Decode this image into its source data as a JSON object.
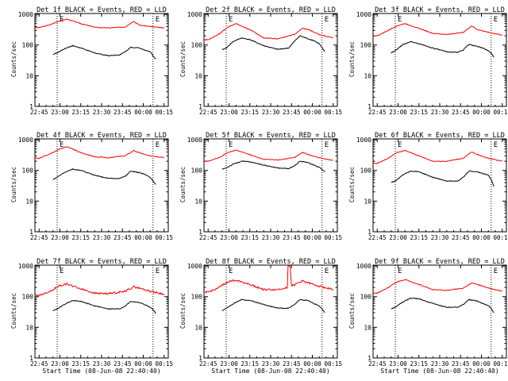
{
  "chart_data": [
    {
      "type": "line",
      "title": "Det 1f BLACK = Events, RED = LLD",
      "xlabel": "",
      "ylabel": "Counts/sec",
      "x_ticks": [
        "22:45",
        "23:00",
        "23:15",
        "23:30",
        "23:45",
        "00:00",
        "00:15"
      ],
      "y_ticks": [
        "1",
        "10",
        "100",
        "1000"
      ],
      "y_scale": "log",
      "ylim": [
        1,
        1000
      ],
      "markers": [
        "E",
        "E"
      ],
      "series": [
        {
          "name": "LLD",
          "color": "#ff0000",
          "x": [
            -3,
            0,
            8,
            14,
            20,
            30,
            40,
            50,
            62,
            68,
            72,
            80,
            90
          ],
          "values": [
            370,
            370,
            460,
            600,
            700,
            500,
            380,
            360,
            390,
            600,
            450,
            400,
            360
          ]
        },
        {
          "name": "Events",
          "color": "#000000",
          "x": [
            10,
            13,
            18,
            24,
            30,
            40,
            50,
            58,
            62,
            66,
            72,
            76,
            80,
            82,
            84
          ],
          "values": [
            50,
            55,
            75,
            95,
            80,
            55,
            45,
            48,
            60,
            85,
            80,
            70,
            60,
            45,
            35
          ]
        }
      ]
    },
    {
      "type": "line",
      "title": "Det 2f BLACK = Events, RED = LLD",
      "xlabel": "",
      "ylabel": "Counts/sec",
      "x_ticks": [
        "22:45",
        "23:00",
        "23:15",
        "23:30",
        "23:45",
        "00:00",
        "00:15"
      ],
      "y_ticks": [
        "1",
        "10",
        "100",
        "1000"
      ],
      "y_scale": "log",
      "ylim": [
        1,
        1000
      ],
      "markers": [
        "E",
        "E"
      ],
      "series": [
        {
          "name": "LLD",
          "color": "#ff0000",
          "x": [
            -3,
            0,
            8,
            14,
            20,
            30,
            40,
            50,
            62,
            68,
            72,
            80,
            90
          ],
          "values": [
            150,
            150,
            230,
            380,
            500,
            320,
            170,
            160,
            220,
            350,
            320,
            220,
            170
          ]
        },
        {
          "name": "Events",
          "color": "#000000",
          "x": [
            10,
            13,
            18,
            24,
            30,
            40,
            50,
            58,
            62,
            66,
            72,
            76,
            80,
            82,
            84
          ],
          "values": [
            70,
            80,
            130,
            170,
            150,
            95,
            72,
            80,
            130,
            200,
            160,
            140,
            110,
            80,
            60
          ]
        }
      ]
    },
    {
      "type": "line",
      "title": "Det 3f BLACK = Events, RED = LLD",
      "xlabel": "",
      "ylabel": "Counts/sec",
      "x_ticks": [
        "22:45",
        "23:00",
        "23:15",
        "23:30",
        "23:45",
        "00:00",
        "00:15"
      ],
      "y_ticks": [
        "1",
        "10",
        "100",
        "1000"
      ],
      "y_scale": "log",
      "ylim": [
        1,
        1000
      ],
      "markers": [
        "E",
        "E"
      ],
      "series": [
        {
          "name": "LLD",
          "color": "#ff0000",
          "x": [
            -3,
            0,
            8,
            14,
            20,
            30,
            40,
            50,
            62,
            68,
            72,
            80,
            90
          ],
          "values": [
            200,
            200,
            300,
            420,
            500,
            350,
            240,
            220,
            260,
            420,
            320,
            260,
            210
          ]
        },
        {
          "name": "Events",
          "color": "#000000",
          "x": [
            10,
            13,
            18,
            24,
            30,
            40,
            50,
            58,
            62,
            66,
            72,
            76,
            80,
            82,
            84
          ],
          "values": [
            55,
            65,
            100,
            130,
            110,
            80,
            60,
            58,
            70,
            105,
            90,
            80,
            65,
            55,
            40
          ]
        }
      ]
    },
    {
      "type": "line",
      "title": "Det 4f BLACK = Events, RED = LLD",
      "xlabel": "",
      "ylabel": "Counts/sec",
      "x_ticks": [
        "22:45",
        "23:00",
        "23:15",
        "23:30",
        "23:45",
        "00:00",
        "00:15"
      ],
      "y_ticks": [
        "1",
        "10",
        "100",
        "1000"
      ],
      "y_scale": "log",
      "ylim": [
        1,
        1000
      ],
      "markers": [
        "E",
        "E"
      ],
      "series": [
        {
          "name": "LLD",
          "color": "#ff0000",
          "x": [
            -3,
            0,
            8,
            14,
            20,
            30,
            40,
            50,
            62,
            68,
            72,
            80,
            90
          ],
          "values": [
            250,
            250,
            350,
            480,
            600,
            380,
            280,
            260,
            300,
            440,
            380,
            300,
            260
          ]
        },
        {
          "name": "Events",
          "color": "#000000",
          "x": [
            10,
            13,
            18,
            24,
            30,
            40,
            50,
            58,
            62,
            66,
            72,
            76,
            80,
            82,
            84
          ],
          "values": [
            50,
            60,
            85,
            110,
            100,
            70,
            55,
            55,
            65,
            95,
            85,
            75,
            60,
            45,
            35
          ]
        }
      ]
    },
    {
      "type": "line",
      "title": "Det 5f BLACK = Events, RED = LLD",
      "xlabel": "",
      "ylabel": "Counts/sec",
      "x_ticks": [
        "22:45",
        "23:00",
        "23:15",
        "23:30",
        "23:45",
        "00:00",
        "00:15"
      ],
      "y_ticks": [
        "1",
        "10",
        "100",
        "1000"
      ],
      "y_scale": "log",
      "ylim": [
        1,
        1000
      ],
      "markers": [
        "E",
        "E"
      ],
      "series": [
        {
          "name": "LLD",
          "color": "#ff0000",
          "x": [
            -3,
            0,
            8,
            14,
            20,
            30,
            40,
            50,
            62,
            68,
            72,
            80,
            90
          ],
          "values": [
            200,
            200,
            260,
            380,
            460,
            330,
            230,
            220,
            260,
            390,
            330,
            260,
            210
          ]
        },
        {
          "name": "Events",
          "color": "#000000",
          "x": [
            10,
            13,
            18,
            24,
            30,
            40,
            50,
            58,
            62,
            66,
            72,
            76,
            80,
            82,
            84
          ],
          "values": [
            110,
            120,
            160,
            200,
            190,
            150,
            120,
            115,
            140,
            200,
            180,
            150,
            125,
            110,
            90
          ]
        }
      ]
    },
    {
      "type": "line",
      "title": "Det 6f BLACK = Events, RED = LLD",
      "xlabel": "",
      "ylabel": "Counts/sec",
      "x_ticks": [
        "22:45",
        "23:00",
        "23:15",
        "23:30",
        "23:45",
        "00:00",
        "00:15"
      ],
      "y_ticks": [
        "1",
        "10",
        "100",
        "1000"
      ],
      "y_scale": "log",
      "ylim": [
        1,
        1000
      ],
      "markers": [
        "E",
        "E"
      ],
      "series": [
        {
          "name": "LLD",
          "color": "#ff0000",
          "x": [
            -3,
            0,
            8,
            14,
            20,
            30,
            40,
            50,
            62,
            68,
            72,
            80,
            90
          ],
          "values": [
            170,
            170,
            250,
            380,
            450,
            300,
            200,
            200,
            250,
            400,
            330,
            250,
            200
          ]
        },
        {
          "name": "Events",
          "color": "#000000",
          "x": [
            10,
            13,
            18,
            24,
            30,
            40,
            50,
            58,
            62,
            66,
            72,
            76,
            80,
            82,
            84
          ],
          "values": [
            40,
            45,
            70,
            95,
            90,
            60,
            45,
            45,
            60,
            95,
            90,
            80,
            70,
            50,
            30
          ]
        }
      ]
    },
    {
      "type": "line",
      "title": "Det 7f BLACK = Events, RED = LLD",
      "xlabel": "",
      "ylabel": "Counts/sec",
      "x_ticks": [
        "22:45",
        "23:00",
        "23:15",
        "23:30",
        "23:45",
        "00:00",
        "00:15"
      ],
      "y_ticks": [
        "1",
        "10",
        "100",
        "1000"
      ],
      "y_scale": "log",
      "ylim": [
        1,
        1000
      ],
      "markers": [
        "E",
        "E"
      ],
      "series": [
        {
          "name": "LLD",
          "color": "#ff0000",
          "x": [
            -3,
            0,
            8,
            14,
            20,
            30,
            40,
            50,
            62,
            68,
            72,
            80,
            90
          ],
          "values": [
            110,
            110,
            150,
            220,
            260,
            180,
            130,
            125,
            150,
            210,
            190,
            150,
            120
          ]
        },
        {
          "name": "Events",
          "color": "#000000",
          "x": [
            10,
            13,
            18,
            24,
            30,
            40,
            50,
            58,
            62,
            66,
            72,
            76,
            80,
            82,
            84
          ],
          "values": [
            35,
            40,
            55,
            75,
            70,
            50,
            40,
            40,
            50,
            70,
            65,
            55,
            45,
            38,
            28
          ]
        }
      ]
    },
    {
      "type": "line",
      "title": "Det 8f BLACK = Events, RED = LLD",
      "xlabel": "",
      "ylabel": "Counts/sec",
      "x_ticks": [
        "22:45",
        "23:00",
        "23:15",
        "23:30",
        "23:45",
        "00:00",
        "00:15"
      ],
      "y_ticks": [
        "1",
        "10",
        "100",
        "1000"
      ],
      "y_scale": "log",
      "ylim": [
        1,
        1000
      ],
      "markers": [
        "E",
        "E"
      ],
      "series": [
        {
          "name": "LLD",
          "color": "#ff0000",
          "x": [
            -3,
            0,
            8,
            14,
            20,
            30,
            40,
            50,
            57,
            57.5,
            58,
            59,
            60,
            62,
            68,
            72,
            80,
            90
          ],
          "values": [
            140,
            140,
            200,
            300,
            350,
            250,
            170,
            170,
            200,
            1000,
            1000,
            1000,
            230,
            240,
            330,
            280,
            220,
            170
          ]
        },
        {
          "name": "Events",
          "color": "#000000",
          "x": [
            10,
            13,
            18,
            24,
            30,
            40,
            50,
            58,
            62,
            66,
            72,
            76,
            80,
            82,
            84
          ],
          "values": [
            35,
            42,
            58,
            80,
            75,
            55,
            42,
            42,
            55,
            80,
            75,
            60,
            50,
            40,
            30
          ]
        }
      ]
    },
    {
      "type": "line",
      "title": "Det 9f BLACK = Events, RED = LLD",
      "xlabel": "",
      "ylabel": "Counts/sec",
      "x_ticks": [
        "22:45",
        "23:00",
        "23:15",
        "23:30",
        "23:45",
        "00:00",
        "00:15"
      ],
      "y_ticks": [
        "1",
        "10",
        "100",
        "1000"
      ],
      "y_scale": "log",
      "ylim": [
        1,
        1000
      ],
      "markers": [
        "E",
        "E"
      ],
      "series": [
        {
          "name": "LLD",
          "color": "#ff0000",
          "x": [
            -3,
            0,
            8,
            14,
            20,
            30,
            40,
            50,
            62,
            68,
            72,
            80,
            90
          ],
          "values": [
            130,
            130,
            200,
            300,
            360,
            250,
            170,
            160,
            190,
            280,
            250,
            190,
            150
          ]
        },
        {
          "name": "Events",
          "color": "#000000",
          "x": [
            10,
            13,
            18,
            24,
            30,
            40,
            50,
            58,
            62,
            66,
            72,
            76,
            80,
            82,
            84
          ],
          "values": [
            40,
            45,
            65,
            90,
            85,
            60,
            45,
            45,
            55,
            80,
            72,
            60,
            50,
            42,
            30
          ]
        }
      ]
    }
  ],
  "xaxis_caption": "Start Time (08-Jun-08 22:40:40)",
  "caption_panels": [
    6,
    7,
    8
  ]
}
